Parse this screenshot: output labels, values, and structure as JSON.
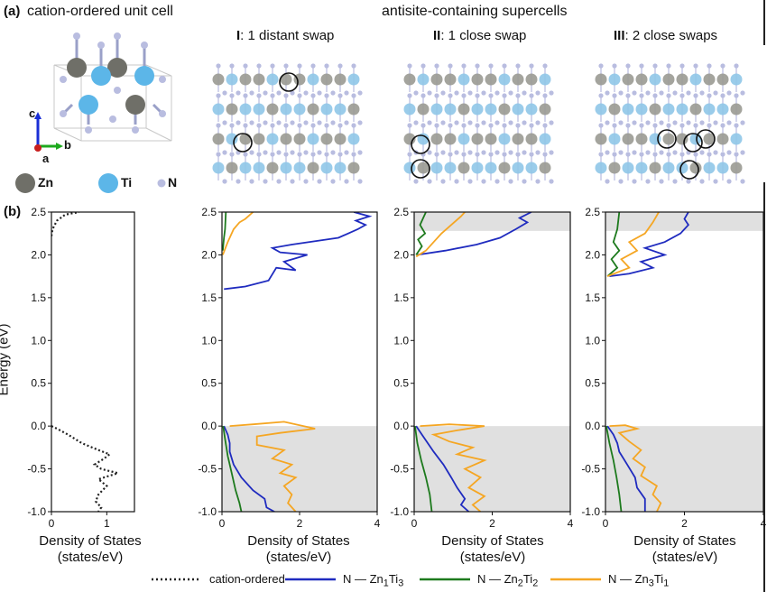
{
  "panel_a": {
    "label": "(a)",
    "unit_cell_title": "cation-ordered unit cell",
    "supercells_title": "antisite-containing supercells",
    "axes": {
      "c": "c",
      "b": "b",
      "a": "a"
    },
    "atoms": [
      {
        "symbol": "Zn",
        "color": "#6f6f68"
      },
      {
        "symbol": "Ti",
        "color": "#5cb6e8"
      },
      {
        "symbol": "N",
        "color": "#b9bde0"
      }
    ],
    "supercells": [
      {
        "numeral": "I",
        "title": ": 1 distant swap"
      },
      {
        "numeral": "II",
        "title": ": 1 close swap"
      },
      {
        "numeral": "III",
        "title": ": 2 close swaps"
      }
    ]
  },
  "panel_b": {
    "label": "(b)",
    "ylabel": "Energy (eV)",
    "xlabel_line1": "Density of States",
    "xlabel_line2": "(states/eV)"
  },
  "legend": {
    "cation_ordered": "cation-ordered",
    "n_zn1ti3": {
      "prefix": "N — Zn",
      "s1": "1",
      "mid": "Ti",
      "s2": "3"
    },
    "n_zn2ti2": {
      "prefix": "N — Zn",
      "s1": "2",
      "mid": "Ti",
      "s2": "2"
    },
    "n_zn3ti1": {
      "prefix": "N — Zn",
      "s1": "3",
      "mid": "Ti",
      "s2": "1"
    }
  },
  "colors": {
    "zn1ti3": "#1f2bbf",
    "zn2ti2": "#1d7a1d",
    "zn3ti1": "#f5a623",
    "cation_ordered": "#222222",
    "shade": "#e0e0e0"
  },
  "chart_data": [
    {
      "type": "line",
      "title": "",
      "xlabel": "Density of States (states/eV)",
      "ylabel": "Energy (eV)",
      "xlim": [
        0,
        1.5
      ],
      "ylim": [
        -1.0,
        2.5
      ],
      "xticks": [
        0,
        1
      ],
      "yticks": [
        -1.0,
        -0.5,
        0.0,
        0.5,
        1.0,
        1.5,
        2.0,
        2.5
      ],
      "series": [
        {
          "name": "cation-ordered",
          "style": "dotted",
          "points": [
            [
              0,
              2.22
            ],
            [
              0.02,
              2.3
            ],
            [
              0.1,
              2.4
            ],
            [
              0.25,
              2.47
            ],
            [
              0.5,
              2.5
            ],
            [
              0,
              0.0
            ],
            [
              0.1,
              -0.03
            ],
            [
              0.3,
              -0.1
            ],
            [
              0.55,
              -0.2
            ],
            [
              0.85,
              -0.28
            ],
            [
              1.05,
              -0.33
            ],
            [
              0.95,
              -0.38
            ],
            [
              0.78,
              -0.45
            ],
            [
              0.9,
              -0.5
            ],
            [
              1.2,
              -0.55
            ],
            [
              0.85,
              -0.62
            ],
            [
              1.0,
              -0.7
            ],
            [
              0.85,
              -0.8
            ],
            [
              0.8,
              -0.88
            ],
            [
              0.9,
              -0.95
            ],
            [
              0.85,
              -1.0
            ]
          ]
        }
      ],
      "shaded_bands": []
    },
    {
      "type": "line",
      "title": "",
      "xlabel": "Density of States (states/eV)",
      "ylabel": "",
      "xlim": [
        0,
        4
      ],
      "ylim": [
        -1.0,
        2.5
      ],
      "xticks": [
        0,
        2,
        4
      ],
      "yticks": [
        -1.0,
        -0.5,
        0.0,
        0.5,
        1.0,
        1.5,
        2.0,
        2.5
      ],
      "shaded_bands": [
        [
          -1.0,
          0.0
        ]
      ],
      "series": [
        {
          "name": "N — Zn1Ti3",
          "color_key": "zn1ti3",
          "points": [
            [
              0.05,
              1.6
            ],
            [
              0.6,
              1.63
            ],
            [
              1.2,
              1.7
            ],
            [
              1.4,
              1.85
            ],
            [
              1.9,
              1.82
            ],
            [
              1.6,
              1.92
            ],
            [
              2.2,
              2.0
            ],
            [
              1.5,
              2.03
            ],
            [
              1.3,
              2.08
            ],
            [
              1.8,
              2.12
            ],
            [
              3.0,
              2.2
            ],
            [
              3.5,
              2.3
            ],
            [
              3.7,
              2.35
            ],
            [
              3.45,
              2.4
            ],
            [
              3.8,
              2.45
            ],
            [
              3.4,
              2.5
            ],
            [
              0.05,
              0.0
            ],
            [
              0.15,
              -0.1
            ],
            [
              0.2,
              -0.2
            ],
            [
              0.2,
              -0.3
            ],
            [
              0.3,
              -0.45
            ],
            [
              0.5,
              -0.6
            ],
            [
              0.8,
              -0.75
            ],
            [
              1.1,
              -0.85
            ],
            [
              1.15,
              -0.95
            ],
            [
              1.35,
              -1.0
            ]
          ]
        },
        {
          "name": "N — Zn2Ti2",
          "color_key": "zn2ti2",
          "points": [
            [
              0.02,
              2.05
            ],
            [
              0.05,
              2.2
            ],
            [
              0.08,
              2.3
            ],
            [
              0.1,
              2.5
            ],
            [
              0.03,
              0.0
            ],
            [
              0.08,
              -0.15
            ],
            [
              0.15,
              -0.35
            ],
            [
              0.25,
              -0.55
            ],
            [
              0.35,
              -0.75
            ],
            [
              0.45,
              -0.9
            ],
            [
              0.5,
              -1.0
            ]
          ]
        },
        {
          "name": "N — Zn3Ti1",
          "color_key": "zn3ti1",
          "points": [
            [
              0.02,
              2.0
            ],
            [
              0.15,
              2.15
            ],
            [
              0.3,
              2.3
            ],
            [
              0.45,
              2.38
            ],
            [
              0.6,
              2.42
            ],
            [
              0.8,
              2.5
            ],
            [
              0.2,
              0.0
            ],
            [
              0.8,
              0.02
            ],
            [
              1.6,
              0.05
            ],
            [
              2.4,
              -0.03
            ],
            [
              1.5,
              -0.08
            ],
            [
              0.9,
              -0.12
            ],
            [
              0.9,
              -0.22
            ],
            [
              1.6,
              -0.28
            ],
            [
              1.3,
              -0.38
            ],
            [
              1.8,
              -0.45
            ],
            [
              1.5,
              -0.55
            ],
            [
              1.9,
              -0.6
            ],
            [
              1.6,
              -0.7
            ],
            [
              1.8,
              -0.8
            ],
            [
              1.7,
              -0.9
            ],
            [
              1.9,
              -1.0
            ]
          ]
        }
      ]
    },
    {
      "type": "line",
      "title": "",
      "xlabel": "Density of States (states/eV)",
      "ylabel": "",
      "xlim": [
        0,
        4
      ],
      "ylim": [
        -1.0,
        2.5
      ],
      "xticks": [
        0,
        2,
        4
      ],
      "yticks": [
        -1.0,
        -0.5,
        0.0,
        0.5,
        1.0,
        1.5,
        2.0,
        2.5
      ],
      "shaded_bands": [
        [
          -1.0,
          0.0
        ],
        [
          2.28,
          2.5
        ]
      ],
      "series": [
        {
          "name": "N — Zn1Ti3",
          "color_key": "zn1ti3",
          "points": [
            [
              0.08,
              2.0
            ],
            [
              0.8,
              2.05
            ],
            [
              1.6,
              2.12
            ],
            [
              2.2,
              2.2
            ],
            [
              2.6,
              2.3
            ],
            [
              2.9,
              2.38
            ],
            [
              2.7,
              2.43
            ],
            [
              3.0,
              2.5
            ],
            [
              0.05,
              0.0
            ],
            [
              0.2,
              -0.1
            ],
            [
              0.35,
              -0.2
            ],
            [
              0.5,
              -0.3
            ],
            [
              0.75,
              -0.45
            ],
            [
              0.95,
              -0.6
            ],
            [
              1.1,
              -0.72
            ],
            [
              1.3,
              -0.85
            ],
            [
              1.2,
              -0.92
            ],
            [
              1.4,
              -1.0
            ]
          ]
        },
        {
          "name": "N — Zn2Ti2",
          "color_key": "zn2ti2",
          "points": [
            [
              0.05,
              2.0
            ],
            [
              0.2,
              2.1
            ],
            [
              0.1,
              2.18
            ],
            [
              0.28,
              2.25
            ],
            [
              0.15,
              2.35
            ],
            [
              0.3,
              2.5
            ],
            [
              0.02,
              0.0
            ],
            [
              0.08,
              -0.2
            ],
            [
              0.18,
              -0.4
            ],
            [
              0.3,
              -0.6
            ],
            [
              0.4,
              -0.8
            ],
            [
              0.45,
              -1.0
            ]
          ]
        },
        {
          "name": "N — Zn3Ti1",
          "color_key": "zn3ti1",
          "points": [
            [
              0.05,
              1.98
            ],
            [
              0.3,
              2.05
            ],
            [
              0.5,
              2.15
            ],
            [
              0.7,
              2.25
            ],
            [
              0.95,
              2.35
            ],
            [
              1.2,
              2.45
            ],
            [
              1.3,
              2.5
            ],
            [
              0.15,
              0.0
            ],
            [
              0.9,
              0.02
            ],
            [
              1.8,
              0.0
            ],
            [
              1.1,
              -0.05
            ],
            [
              0.5,
              -0.1
            ],
            [
              0.9,
              -0.18
            ],
            [
              1.5,
              -0.25
            ],
            [
              1.1,
              -0.33
            ],
            [
              1.8,
              -0.4
            ],
            [
              1.3,
              -0.5
            ],
            [
              1.7,
              -0.6
            ],
            [
              1.4,
              -0.72
            ],
            [
              1.8,
              -0.82
            ],
            [
              1.5,
              -0.92
            ],
            [
              1.7,
              -1.0
            ]
          ]
        }
      ]
    },
    {
      "type": "line",
      "title": "",
      "xlabel": "Density of States (states/eV)",
      "ylabel": "",
      "xlim": [
        0,
        4
      ],
      "ylim": [
        -1.0,
        2.5
      ],
      "xticks": [
        0,
        2,
        4
      ],
      "yticks": [
        -1.0,
        -0.5,
        0.0,
        0.5,
        1.0,
        1.5,
        2.0,
        2.5
      ],
      "shaded_bands": [
        [
          -1.0,
          0.0
        ],
        [
          2.28,
          2.5
        ]
      ],
      "series": [
        {
          "name": "N — Zn1Ti3",
          "color_key": "zn1ti3",
          "points": [
            [
              0.1,
              1.75
            ],
            [
              0.6,
              1.78
            ],
            [
              1.2,
              1.85
            ],
            [
              0.9,
              1.92
            ],
            [
              1.5,
              2.0
            ],
            [
              1.0,
              2.08
            ],
            [
              1.5,
              2.15
            ],
            [
              1.9,
              2.25
            ],
            [
              2.1,
              2.35
            ],
            [
              2.0,
              2.42
            ],
            [
              2.1,
              2.5
            ],
            [
              0.05,
              0.0
            ],
            [
              0.2,
              -0.1
            ],
            [
              0.3,
              -0.2
            ],
            [
              0.35,
              -0.3
            ],
            [
              0.55,
              -0.45
            ],
            [
              0.75,
              -0.6
            ],
            [
              0.8,
              -0.72
            ],
            [
              1.0,
              -0.85
            ],
            [
              1.0,
              -1.0
            ]
          ]
        },
        {
          "name": "N — Zn2Ti2",
          "color_key": "zn2ti2",
          "points": [
            [
              0.05,
              1.75
            ],
            [
              0.3,
              1.85
            ],
            [
              0.15,
              1.95
            ],
            [
              0.35,
              2.05
            ],
            [
              0.2,
              2.15
            ],
            [
              0.3,
              2.3
            ],
            [
              0.35,
              2.5
            ],
            [
              0.02,
              0.0
            ],
            [
              0.1,
              -0.2
            ],
            [
              0.2,
              -0.4
            ],
            [
              0.28,
              -0.6
            ],
            [
              0.35,
              -0.8
            ],
            [
              0.4,
              -1.0
            ]
          ]
        },
        {
          "name": "N — Zn3Ti1",
          "color_key": "zn3ti1",
          "points": [
            [
              0.05,
              1.75
            ],
            [
              0.6,
              1.85
            ],
            [
              0.4,
              1.95
            ],
            [
              0.8,
              2.05
            ],
            [
              0.6,
              2.15
            ],
            [
              1.0,
              2.25
            ],
            [
              1.2,
              2.38
            ],
            [
              1.35,
              2.5
            ],
            [
              0.1,
              0.0
            ],
            [
              0.5,
              0.01
            ],
            [
              0.8,
              -0.03
            ],
            [
              0.35,
              -0.08
            ],
            [
              0.6,
              -0.18
            ],
            [
              0.9,
              -0.28
            ],
            [
              0.7,
              -0.38
            ],
            [
              1.0,
              -0.48
            ],
            [
              0.9,
              -0.58
            ],
            [
              1.3,
              -0.7
            ],
            [
              1.2,
              -0.8
            ],
            [
              1.4,
              -0.9
            ],
            [
              1.3,
              -1.0
            ]
          ]
        }
      ]
    }
  ]
}
